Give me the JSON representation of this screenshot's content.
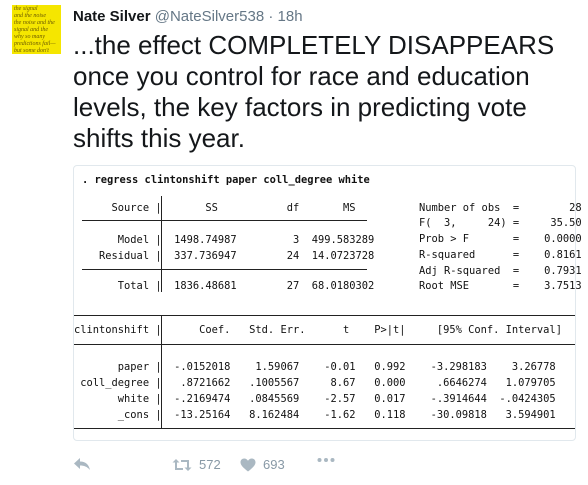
{
  "tweet": {
    "avatar_text": "the signal\nand the noise\nthe noise and the\nsignal and the\nwhy so many\npredictions fail—\nbut some don't",
    "name": "Nate Silver",
    "handle": "@NateSilver538",
    "separator": "·",
    "time": "18h",
    "text": "...the effect COMPLETELY DISAPPEARS once you control for race and education levels, the key factors in predicting vote shifts this year."
  },
  "stata": {
    "command": ". regress clintonshift paper coll_degree white",
    "anova_header": "      Source |       SS           df       MS",
    "anova_rows": [
      "       Model |  1498.74987         3  499.583289",
      "    Residual |  337.736947        24  14.0723728",
      "       Total |  1836.48681        27  68.0180302"
    ],
    "stats": [
      "Number of obs  =        28",
      "F(  3,     24) =     35.50",
      "Prob > F       =    0.0000",
      "R-squared      =    0.8161",
      "Adj R-squared  =    0.7931",
      "Root MSE       =    3.7513"
    ],
    "coef_header": "clintonshift |      Coef.   Std. Err.      t    P>|t|     [95% Conf. Interval]",
    "coef_rows": [
      "       paper |  -.0152018    1.59067    -0.01   0.992    -3.298183    3.26778",
      " coll_degree |   .8721662   .1005567     8.67   0.000     .6646274   1.079705",
      "       white |  -.2169474   .0845569    -2.57   0.017    -.3914644  -.0424305",
      "       _cons |  -13.25164   8.162484    -1.62   0.118    -30.09818   3.594901"
    ]
  },
  "actions": {
    "reply_icon": "reply-icon",
    "retweet_icon": "retweet-icon",
    "retweet_count": "572",
    "like_icon": "heart-icon",
    "like_count": "693",
    "more_icon": "more-icon"
  }
}
